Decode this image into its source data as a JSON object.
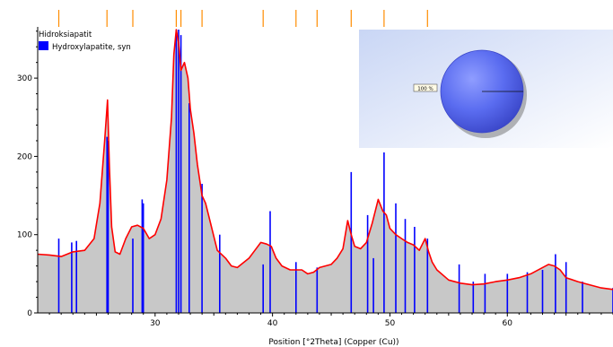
{
  "chart_data": {
    "type": "line",
    "title": "",
    "xlabel": "Position [°2Theta] (Copper (Cu))",
    "ylabel": "",
    "xlim": [
      20.0,
      69.0
    ],
    "ylim": [
      0,
      362
    ],
    "x_ticks": [
      30,
      40,
      50,
      60
    ],
    "y_ticks": [
      0,
      100,
      200,
      300
    ],
    "grid": false,
    "legend": {
      "position": "top-left",
      "title": "Hidroksiapatit",
      "entries": [
        {
          "name": "Hydroxylapatite, syn",
          "color": "#0000ff"
        }
      ]
    },
    "colors": {
      "pattern": "#ff0000",
      "reference": "#0000ff",
      "fill": "#c8c8c8",
      "marker": "#ff8c00"
    },
    "series": [
      {
        "name": "",
        "kind": "measured_pattern",
        "x": [
          20.0,
          21.0,
          22.0,
          23.0,
          24.0,
          24.8,
          25.3,
          25.7,
          25.95,
          26.1,
          26.3,
          26.6,
          27.0,
          27.5,
          28.0,
          28.5,
          29.0,
          29.5,
          30.0,
          30.5,
          31.0,
          31.4,
          31.6,
          31.8,
          32.0,
          32.2,
          32.5,
          32.8,
          33.0,
          33.3,
          33.6,
          34.0,
          34.3,
          34.8,
          35.3,
          36.0,
          36.5,
          37.0,
          38.0,
          38.5,
          39.0,
          39.5,
          39.9,
          40.3,
          40.8,
          41.5,
          42.0,
          42.5,
          43.0,
          43.5,
          44.0,
          45.0,
          45.5,
          46.0,
          46.4,
          46.7,
          47.0,
          47.5,
          48.0,
          48.5,
          49.0,
          49.4,
          49.7,
          50.0,
          50.5,
          51.0,
          51.5,
          52.0,
          52.5,
          53.0,
          53.3,
          53.6,
          54.0,
          55.0,
          56.0,
          57.0,
          58.0,
          59.0,
          60.0,
          61.0,
          62.0,
          63.0,
          63.5,
          64.0,
          64.5,
          65.0,
          66.0,
          67.0,
          68.0,
          69.0
        ],
        "y": [
          75,
          74,
          72,
          78,
          80,
          95,
          140,
          220,
          272,
          190,
          110,
          78,
          75,
          95,
          110,
          112,
          108,
          95,
          100,
          120,
          170,
          250,
          330,
          362,
          345,
          310,
          320,
          300,
          260,
          230,
          190,
          150,
          140,
          110,
          80,
          70,
          60,
          58,
          70,
          80,
          90,
          88,
          85,
          70,
          60,
          55,
          55,
          55,
          50,
          52,
          58,
          62,
          70,
          82,
          118,
          100,
          85,
          82,
          90,
          115,
          145,
          130,
          125,
          108,
          100,
          95,
          90,
          87,
          80,
          95,
          78,
          65,
          55,
          42,
          38,
          36,
          37,
          40,
          42,
          45,
          50,
          58,
          62,
          60,
          55,
          45,
          40,
          36,
          32,
          30
        ]
      },
      {
        "name": "Hydroxylapatite, syn",
        "kind": "reference_lines",
        "x": [
          21.8,
          22.9,
          23.3,
          25.9,
          26.0,
          28.1,
          28.9,
          29.0,
          31.8,
          32.0,
          32.2,
          32.9,
          34.0,
          35.5,
          39.2,
          39.8,
          42.0,
          43.8,
          46.7,
          48.1,
          48.6,
          49.5,
          50.5,
          51.3,
          52.1,
          53.2,
          55.9,
          57.1,
          58.1,
          60.0,
          61.7,
          63.0,
          64.1,
          65.0,
          66.4,
          69.0
        ],
        "y": [
          95,
          90,
          92,
          225,
          220,
          95,
          145,
          140,
          362,
          362,
          355,
          268,
          165,
          100,
          62,
          130,
          65,
          58,
          180,
          125,
          70,
          205,
          140,
          120,
          110,
          95,
          62,
          40,
          50,
          50,
          52,
          55,
          75,
          65,
          40,
          32
        ]
      }
    ],
    "marker_positions": [
      21.8,
      25.9,
      28.1,
      31.8,
      32.2,
      34.0,
      39.2,
      42.0,
      43.8,
      46.7,
      49.5,
      53.2
    ],
    "inset": {
      "label": "100 %"
    }
  }
}
